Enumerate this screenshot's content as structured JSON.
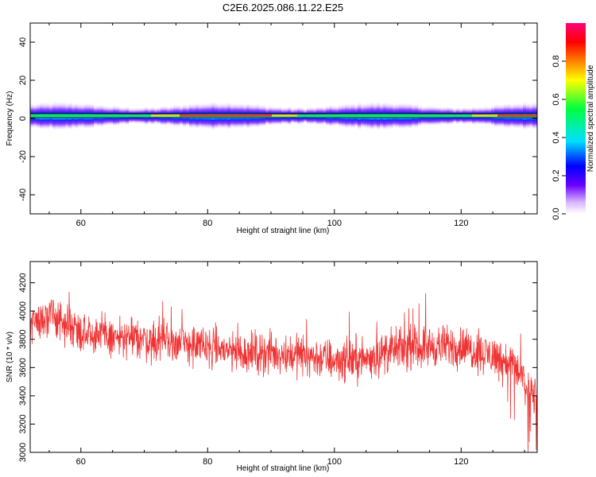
{
  "title": "C2E6.2025.086.11.22.E25",
  "chart_data": [
    {
      "type": "heatmap",
      "xlabel": "Height of straight line (km)",
      "ylabel": "Frequency (Hz)",
      "xlim": [
        52,
        132
      ],
      "ylim": [
        -50,
        50
      ],
      "xticks": [
        60,
        80,
        100,
        120
      ],
      "yticks": [
        -40,
        -20,
        0,
        20,
        40
      ],
      "grid": false,
      "ridge": {
        "description_values": "approximate peak frequency (Hz) vs height (km)",
        "x": [
          52,
          60,
          70,
          80,
          90,
          100,
          110,
          120,
          132
        ],
        "y": [
          1.5,
          1.5,
          1.5,
          1.5,
          1.5,
          1.5,
          1.5,
          1.5,
          1.5
        ]
      },
      "colorbar": {
        "label": "Normalized spectral amplitude",
        "range": [
          0.0,
          1.0
        ],
        "ticks": [
          0.0,
          0.2,
          0.4,
          0.6,
          0.8
        ],
        "ticklabels": [
          "0.0",
          "0.2",
          "0.4",
          "0.6",
          "0.8"
        ],
        "colormap": "rainbow (white-violet-blue-cyan-green-yellow-orange-red-magenta)"
      }
    },
    {
      "type": "line",
      "xlabel": "Height of straight line (km)",
      "ylabel": "SNR (10 * v/v)",
      "xlim": [
        52,
        132
      ],
      "ylim": [
        3000,
        4350
      ],
      "xticks": [
        60,
        80,
        100,
        120
      ],
      "yticks": [
        3000,
        3200,
        3400,
        3600,
        3800,
        4000,
        4200
      ],
      "grid": false,
      "series": [
        {
          "color": "#f03434",
          "trend": {
            "x": [
              52,
              55,
              60,
              65,
              70,
              75,
              80,
              85,
              90,
              95,
              100,
              105,
              110,
              115,
              120,
              125,
              128,
              130,
              132
            ],
            "y": [
              3930,
              3950,
              3870,
              3810,
              3800,
              3780,
              3740,
              3710,
              3700,
              3690,
              3650,
              3660,
              3730,
              3750,
              3750,
              3680,
              3640,
              3500,
              3380
            ]
          },
          "spread": 130
        }
      ]
    }
  ]
}
